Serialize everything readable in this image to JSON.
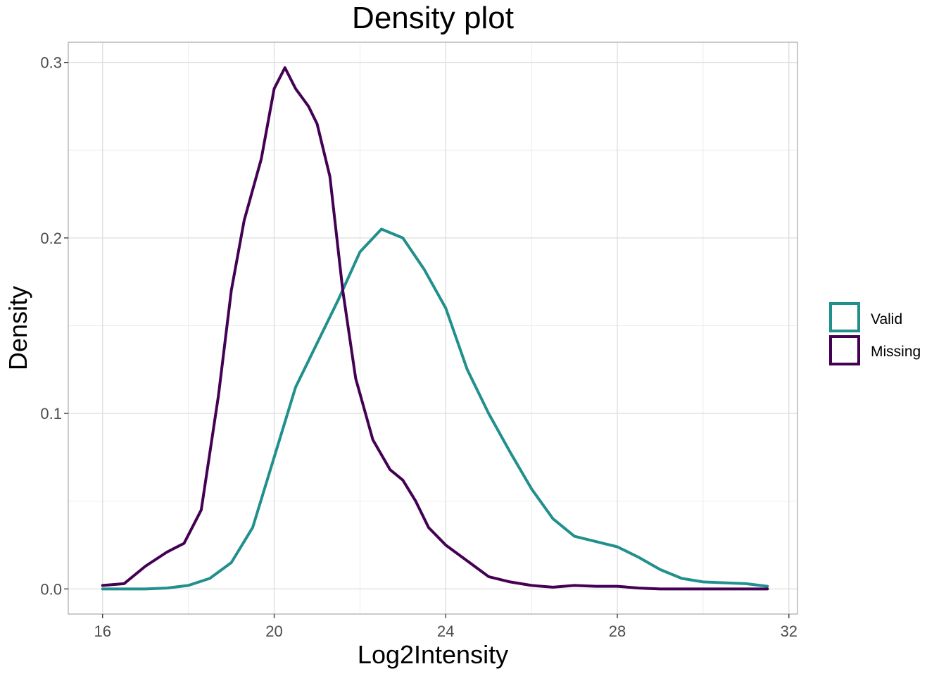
{
  "chart_data": {
    "type": "line",
    "title": "Density plot",
    "xlabel": "Log2Intensity",
    "ylabel": "Density",
    "xlim": [
      15.2,
      32.2
    ],
    "ylim": [
      -0.0143,
      0.3115
    ],
    "x_ticks": [
      16,
      20,
      24,
      28,
      32
    ],
    "y_ticks": [
      0.0,
      0.1,
      0.2,
      0.3
    ],
    "x_tick_labels": [
      "16",
      "20",
      "24",
      "28",
      "32"
    ],
    "y_tick_labels": [
      "0.0",
      "0.1",
      "0.2",
      "0.3"
    ],
    "grid": true,
    "legend_position": "right",
    "series": [
      {
        "name": "Valid",
        "color": "#21908C",
        "points": [
          [
            16.0,
            0.0
          ],
          [
            17.0,
            0.0
          ],
          [
            17.5,
            0.0005
          ],
          [
            18.0,
            0.002
          ],
          [
            18.5,
            0.006
          ],
          [
            19.0,
            0.015
          ],
          [
            19.5,
            0.035
          ],
          [
            20.0,
            0.075
          ],
          [
            20.5,
            0.115
          ],
          [
            21.0,
            0.14
          ],
          [
            21.5,
            0.165
          ],
          [
            22.0,
            0.192
          ],
          [
            22.5,
            0.205
          ],
          [
            23.0,
            0.2
          ],
          [
            23.5,
            0.182
          ],
          [
            24.0,
            0.16
          ],
          [
            24.5,
            0.125
          ],
          [
            25.0,
            0.1
          ],
          [
            25.5,
            0.078
          ],
          [
            26.0,
            0.057
          ],
          [
            26.5,
            0.04
          ],
          [
            27.0,
            0.03
          ],
          [
            27.5,
            0.027
          ],
          [
            28.0,
            0.024
          ],
          [
            28.5,
            0.018
          ],
          [
            29.0,
            0.011
          ],
          [
            29.5,
            0.006
          ],
          [
            30.0,
            0.004
          ],
          [
            31.0,
            0.003
          ],
          [
            31.5,
            0.0015
          ]
        ]
      },
      {
        "name": "Missing",
        "color": "#440154",
        "points": [
          [
            16.0,
            0.002
          ],
          [
            16.5,
            0.003
          ],
          [
            17.0,
            0.013
          ],
          [
            17.5,
            0.021
          ],
          [
            17.9,
            0.026
          ],
          [
            18.3,
            0.045
          ],
          [
            18.7,
            0.11
          ],
          [
            19.0,
            0.17
          ],
          [
            19.3,
            0.21
          ],
          [
            19.7,
            0.245
          ],
          [
            20.0,
            0.285
          ],
          [
            20.25,
            0.297
          ],
          [
            20.5,
            0.285
          ],
          [
            20.8,
            0.275
          ],
          [
            21.0,
            0.265
          ],
          [
            21.3,
            0.235
          ],
          [
            21.6,
            0.17
          ],
          [
            21.9,
            0.12
          ],
          [
            22.3,
            0.085
          ],
          [
            22.7,
            0.068
          ],
          [
            23.0,
            0.062
          ],
          [
            23.3,
            0.05
          ],
          [
            23.6,
            0.035
          ],
          [
            24.0,
            0.025
          ],
          [
            24.5,
            0.016
          ],
          [
            25.0,
            0.007
          ],
          [
            25.5,
            0.004
          ],
          [
            26.0,
            0.002
          ],
          [
            26.5,
            0.001
          ],
          [
            27.0,
            0.002
          ],
          [
            27.5,
            0.0015
          ],
          [
            28.0,
            0.0015
          ],
          [
            28.5,
            0.0005
          ],
          [
            29.0,
            0.0
          ],
          [
            31.5,
            0.0
          ]
        ]
      }
    ]
  }
}
